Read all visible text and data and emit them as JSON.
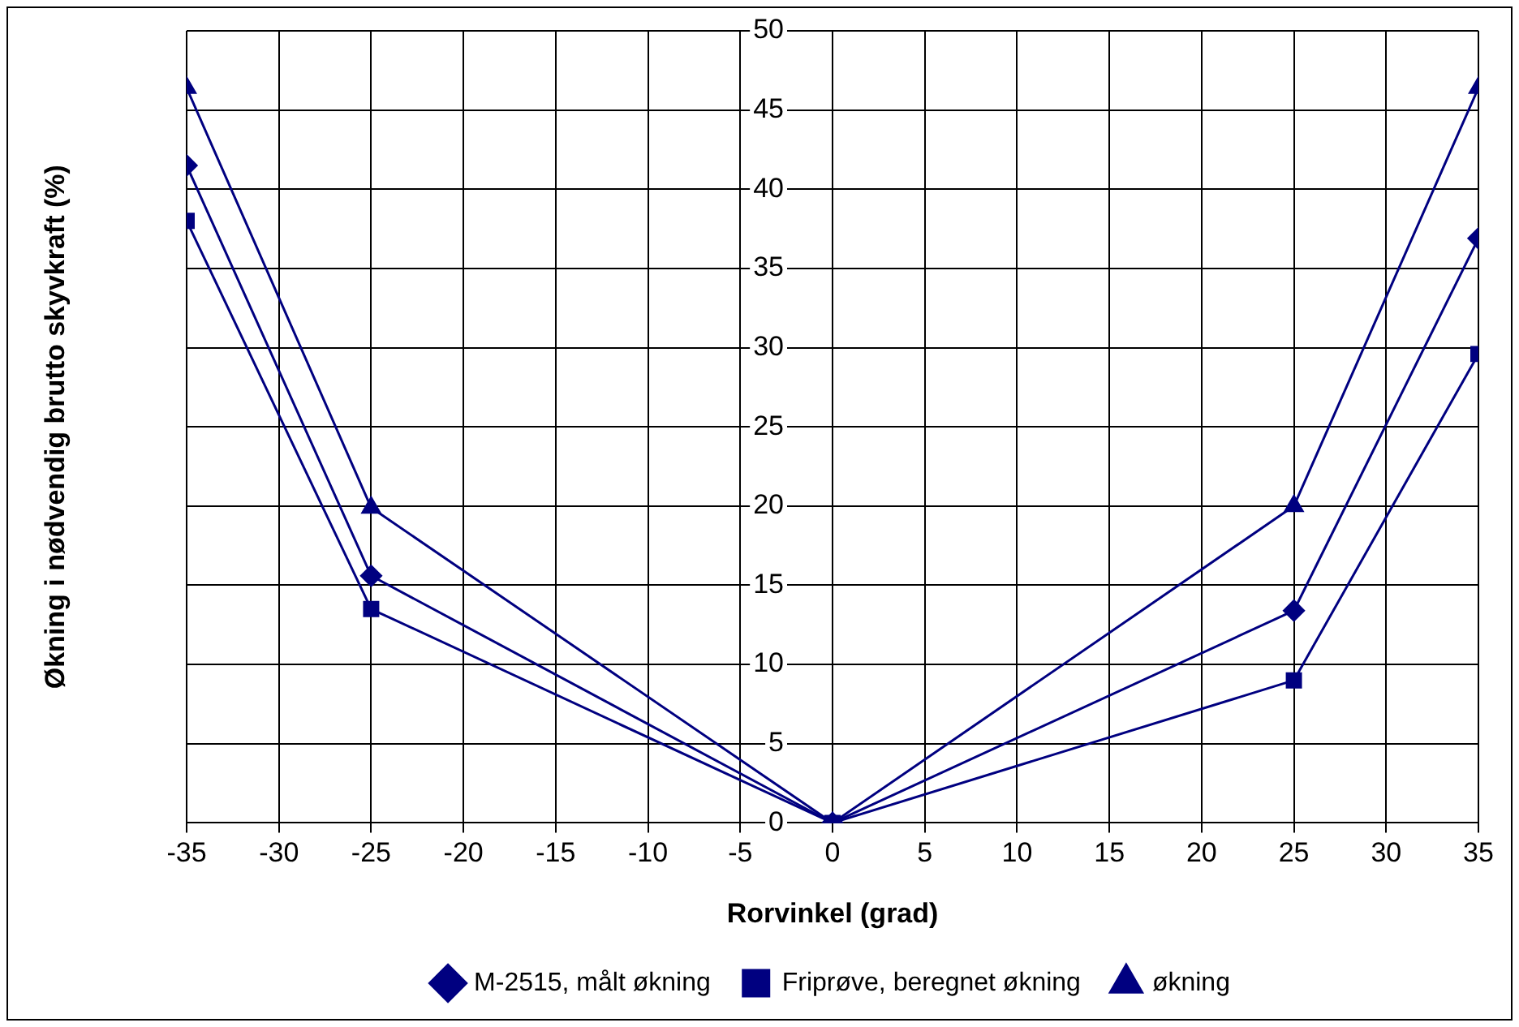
{
  "chart_data": {
    "type": "line",
    "xlabel": "Rorvinkel (grad)",
    "ylabel": "Økning i nødvendig brutto skyvkraft (%)",
    "x": [
      -35,
      -25,
      0,
      25,
      35
    ],
    "series": [
      {
        "name": "M-2515, målt økning",
        "color": "#000080",
        "marker": "diamond",
        "values": [
          41.5,
          15.6,
          0,
          13.4,
          36.9
        ]
      },
      {
        "name": "Friprøve, beregnet økning",
        "color": "#000080",
        "marker": "square",
        "values": [
          38.0,
          13.5,
          0,
          9.0,
          29.6
        ]
      },
      {
        "name": "økning",
        "color": "#000080",
        "marker": "triangle",
        "values": [
          46.4,
          19.9,
          0,
          20.0,
          46.4
        ]
      }
    ],
    "xlim": [
      -35,
      35
    ],
    "xticks": [
      -35,
      -30,
      -25,
      -20,
      -15,
      -10,
      -5,
      0,
      5,
      10,
      15,
      20,
      25,
      30,
      35
    ],
    "ylim": [
      0,
      50
    ],
    "yticks": [
      0,
      5,
      10,
      15,
      20,
      25,
      30,
      35,
      40,
      45,
      50
    ],
    "grid": true,
    "legend": "bottom"
  }
}
